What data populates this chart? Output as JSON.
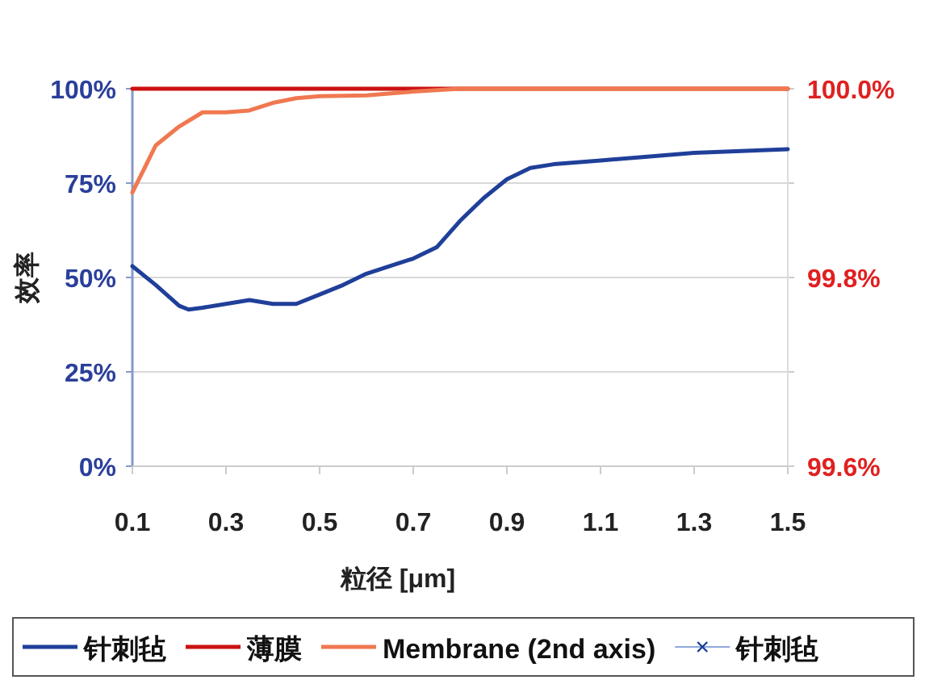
{
  "chart_data": {
    "type": "line",
    "xlabel": "粒径 [μm]",
    "ylabel": "效率",
    "xlim": [
      0.1,
      1.5
    ],
    "xticks": [
      0.1,
      0.3,
      0.5,
      0.7,
      0.9,
      1.1,
      1.3,
      1.5
    ],
    "ylim": [
      0,
      100
    ],
    "yticks": [
      {
        "value": 0,
        "label": "0%"
      },
      {
        "value": 25,
        "label": "25%"
      },
      {
        "value": 50,
        "label": "50%"
      },
      {
        "value": 75,
        "label": "75%"
      },
      {
        "value": 100,
        "label": "100%"
      }
    ],
    "y2lim": [
      99.6,
      100.0
    ],
    "y2ticks": [
      {
        "value": 99.6,
        "label": "99.6%"
      },
      {
        "value": 99.7,
        "label": null
      },
      {
        "value": 99.8,
        "label": "99.8%"
      },
      {
        "value": 99.9,
        "label": null
      },
      {
        "value": 100.0,
        "label": "100.0%"
      }
    ],
    "grid": "y",
    "legend": "bottom",
    "marker": "none",
    "line_style": "solid",
    "series": [
      {
        "name": "针刺毡",
        "color": "#1f3f99",
        "x": [
          0.1,
          0.15,
          0.2,
          0.22,
          0.25,
          0.3,
          0.35,
          0.4,
          0.45,
          0.5,
          0.55,
          0.6,
          0.65,
          0.7,
          0.75,
          0.8,
          0.85,
          0.9,
          0.95,
          1.0,
          1.1,
          1.2,
          1.3,
          1.4,
          1.5
        ],
        "values": [
          53,
          48,
          42.5,
          41.5,
          42,
          43,
          44,
          43,
          43,
          45.5,
          48,
          51,
          53,
          55,
          58,
          65,
          71,
          76,
          79,
          80,
          81,
          82,
          83,
          83.5,
          84
        ]
      },
      {
        "name": "薄膜",
        "color": "#cc1111",
        "x": [
          0.1,
          1.5
        ],
        "values": [
          100,
          100
        ]
      },
      {
        "name": "Membrane (2nd axis)",
        "color": "#f07850",
        "axis": "y2",
        "x": [
          0.1,
          0.13,
          0.15,
          0.2,
          0.25,
          0.3,
          0.35,
          0.4,
          0.45,
          0.5,
          0.6,
          0.7,
          0.8,
          1.0,
          1.5
        ],
        "values": [
          99.89,
          99.92,
          99.94,
          99.96,
          99.975,
          99.975,
          99.977,
          99.985,
          99.99,
          99.992,
          99.993,
          99.997,
          100.0,
          100.0,
          100.0
        ]
      },
      {
        "name": "针刺毡",
        "color": "#8fa8dd",
        "marker": "cross"
      }
    ]
  }
}
